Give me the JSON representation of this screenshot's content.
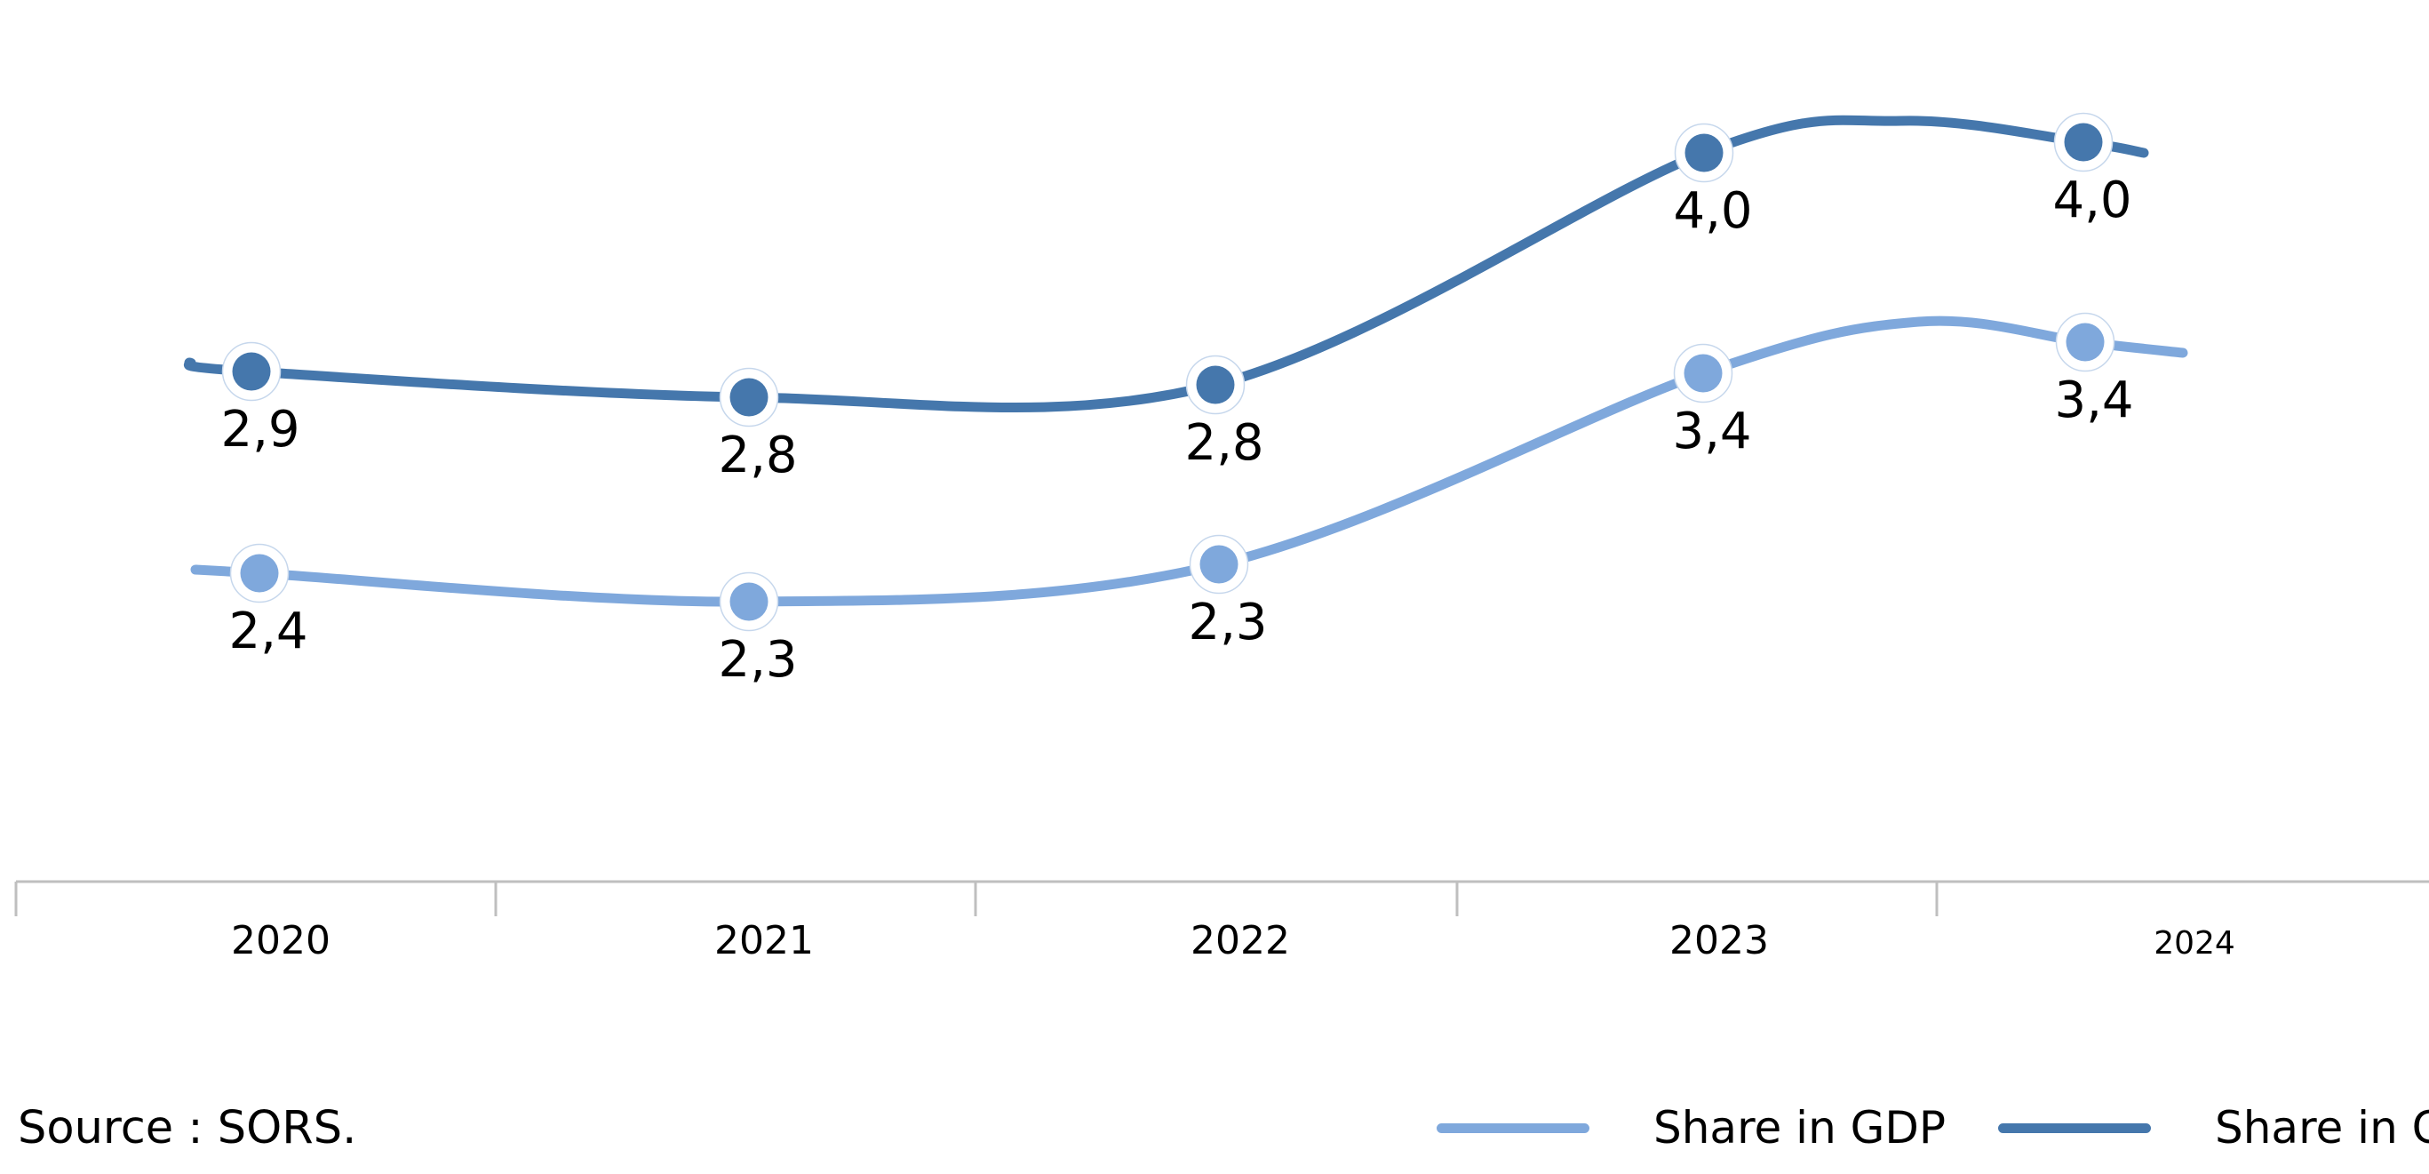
{
  "chart_data": {
    "type": "line",
    "title": "",
    "x_categories": [
      "2020",
      "2021",
      "2022",
      "2023",
      "2024"
    ],
    "series": [
      {
        "name": "Share in GDP",
        "color": "#7FA8DC",
        "values": [
          2.4,
          2.3,
          2.3,
          3.4,
          3.4
        ],
        "point_labels": [
          "2,4",
          "2,3",
          "2,3",
          "3,4",
          "3,4"
        ]
      },
      {
        "name": "Share in GVA",
        "color": "#4577AC",
        "values": [
          2.9,
          2.8,
          2.8,
          4.0,
          4.0
        ],
        "point_labels": [
          "2,9",
          "2,8",
          "2,8",
          "4,0",
          "4,0"
        ]
      }
    ],
    "legend_position": "bottom",
    "grid": false,
    "y_axis_visible": false,
    "decimal_separator": ",",
    "axis_color": "#BFBFBF",
    "label_color": "#000000",
    "marker_ring_color": "#C6D7EC"
  },
  "source_note": "Source : SORS."
}
